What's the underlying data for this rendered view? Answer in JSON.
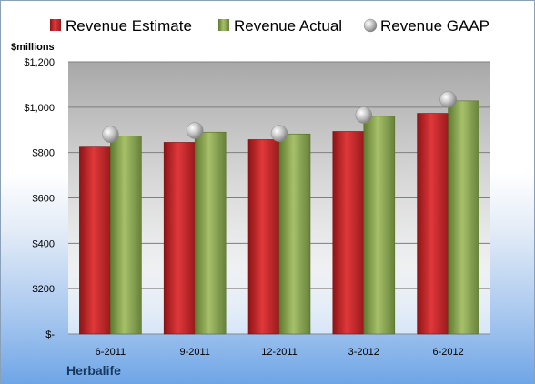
{
  "chart_data": {
    "type": "bar",
    "title": "",
    "ylabel": "$millions",
    "xlabel": "",
    "company": "Herbalife",
    "categories": [
      "6-2011",
      "9-2011",
      "12-2011",
      "3-2012",
      "6-2012"
    ],
    "ytick_labels": [
      "$-",
      "$200",
      "$400",
      "$600",
      "$800",
      "$1,000",
      "$1,200"
    ],
    "ylim": [
      0,
      1200
    ],
    "grid": true,
    "legend_position": "top",
    "series": [
      {
        "name": "Revenue Estimate",
        "kind": "bar",
        "color": "#c0282a",
        "values": [
          828,
          845,
          857,
          893,
          973
        ]
      },
      {
        "name": "Revenue Actual",
        "kind": "bar",
        "color": "#8aa352",
        "values": [
          873,
          890,
          882,
          960,
          1028
        ]
      },
      {
        "name": "Revenue GAAP",
        "kind": "marker",
        "color": "#b5b5b5",
        "values": [
          880,
          897,
          884,
          965,
          1034
        ]
      }
    ]
  }
}
